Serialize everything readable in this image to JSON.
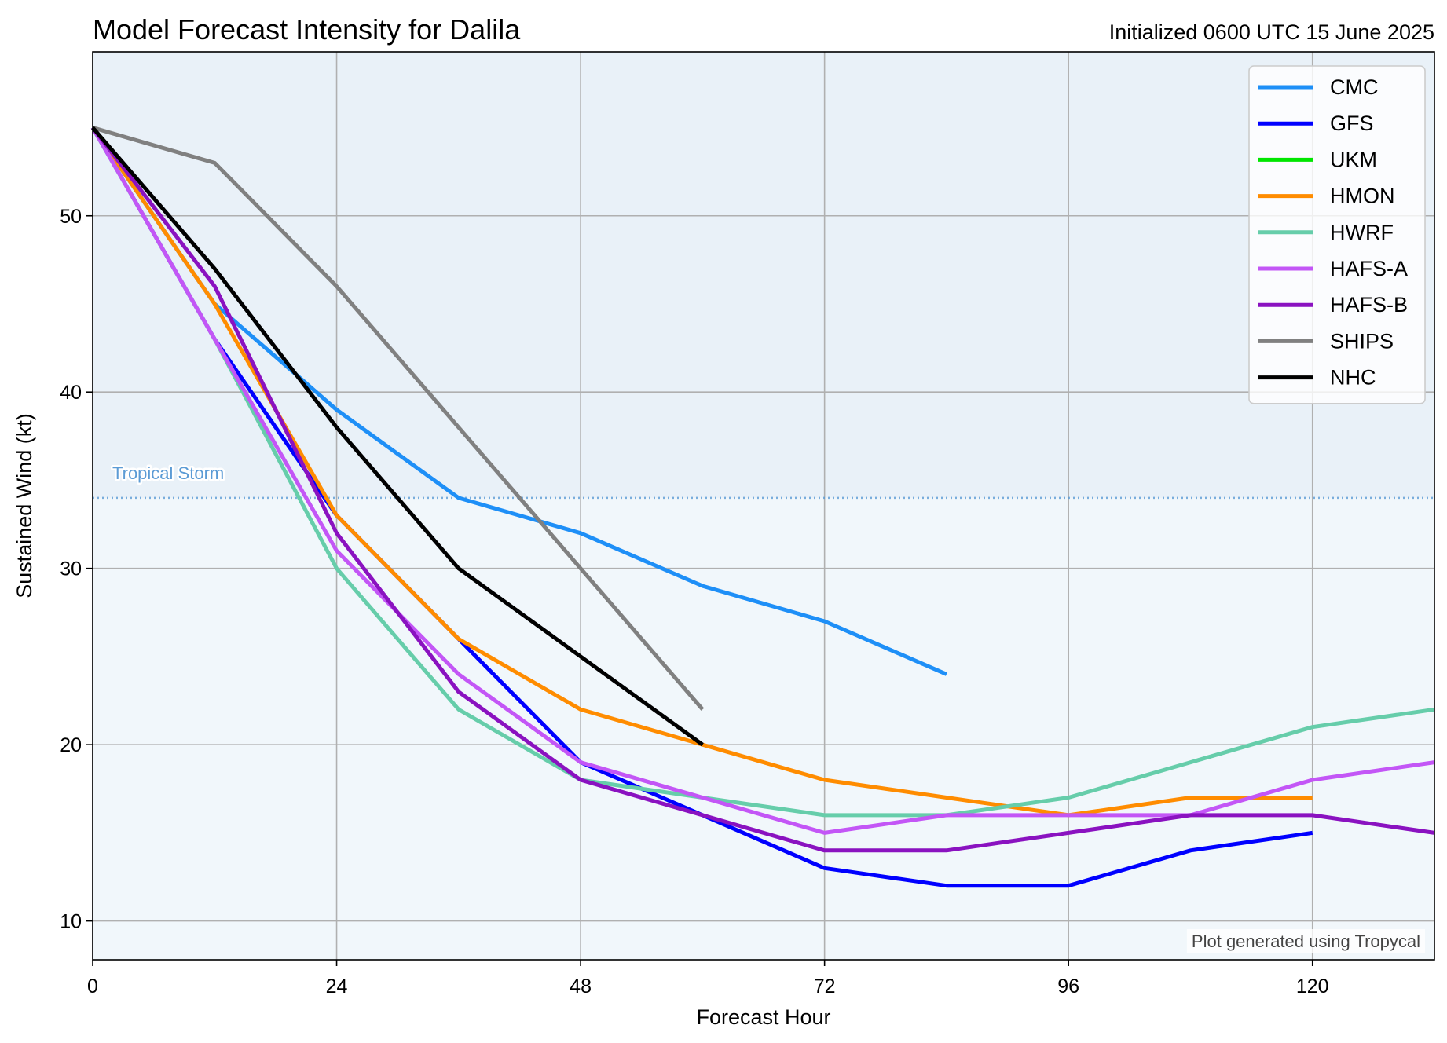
{
  "chart_data": {
    "type": "line",
    "title": "Model Forecast Intensity for Dalila",
    "subtitle": "Initialized 0600 UTC 15 June 2025",
    "xlabel": "Forecast Hour",
    "ylabel": "Sustained Wind (kt)",
    "xlim": [
      0,
      132
    ],
    "ylim": [
      7.8,
      59.3
    ],
    "xticks": [
      0,
      24,
      48,
      72,
      96,
      120
    ],
    "yticks": [
      10,
      20,
      30,
      40,
      50
    ],
    "grid": true,
    "legend_position": "top-right",
    "threshold": {
      "value": 34,
      "label": "Tropical Storm",
      "color": "#5b9bd5"
    },
    "credit": "Plot generated using Tropycal",
    "shading": [
      {
        "from": 34,
        "to": 59.3,
        "color": "#e9f1f8"
      },
      {
        "from": 7.8,
        "to": 34,
        "color": "#f1f7fb"
      }
    ],
    "series": [
      {
        "name": "CMC",
        "color": "#1e8ff7",
        "x": [
          0,
          12,
          24,
          36,
          48,
          60,
          72,
          84
        ],
        "y": [
          55,
          45,
          39,
          34,
          32,
          29,
          27,
          24
        ]
      },
      {
        "name": "GFS",
        "color": "#0000ff",
        "x": [
          0,
          12,
          24,
          36,
          48,
          60,
          72,
          84,
          96,
          108,
          120
        ],
        "y": [
          55,
          43,
          33,
          26,
          19,
          16,
          13,
          12,
          12,
          14,
          15
        ]
      },
      {
        "name": "UKM",
        "color": "#00e600",
        "x": [],
        "y": []
      },
      {
        "name": "HMON",
        "color": "#ff8c00",
        "x": [
          0,
          12,
          24,
          36,
          48,
          60,
          72,
          84,
          96,
          108,
          120
        ],
        "y": [
          55,
          45,
          33,
          26,
          22,
          20,
          18,
          17,
          16,
          17,
          17
        ]
      },
      {
        "name": "HWRF",
        "color": "#66cdaa",
        "x": [
          0,
          12,
          24,
          36,
          48,
          60,
          72,
          84,
          96,
          108,
          120,
          132
        ],
        "y": [
          55,
          43,
          30,
          22,
          18,
          17,
          16,
          16,
          17,
          19,
          21,
          22
        ]
      },
      {
        "name": "HAFS-A",
        "color": "#c356f6",
        "x": [
          0,
          12,
          24,
          36,
          48,
          60,
          72,
          84,
          96,
          108,
          120,
          132
        ],
        "y": [
          55,
          43,
          31,
          24,
          19,
          17,
          15,
          16,
          16,
          16,
          18,
          19
        ]
      },
      {
        "name": "HAFS-B",
        "color": "#8a12c0",
        "x": [
          0,
          12,
          24,
          36,
          48,
          60,
          72,
          84,
          96,
          108,
          120,
          132
        ],
        "y": [
          55,
          46,
          32,
          23,
          18,
          16,
          14,
          14,
          15,
          16,
          16,
          15
        ]
      },
      {
        "name": "SHIPS",
        "color": "#808080",
        "x": [
          0,
          12,
          24,
          36,
          48,
          60
        ],
        "y": [
          55,
          53,
          46,
          38,
          30,
          22
        ]
      },
      {
        "name": "NHC",
        "color": "#000000",
        "x": [
          0,
          12,
          24,
          36,
          48,
          60
        ],
        "y": [
          55,
          47,
          38,
          30,
          25,
          20
        ]
      }
    ]
  }
}
